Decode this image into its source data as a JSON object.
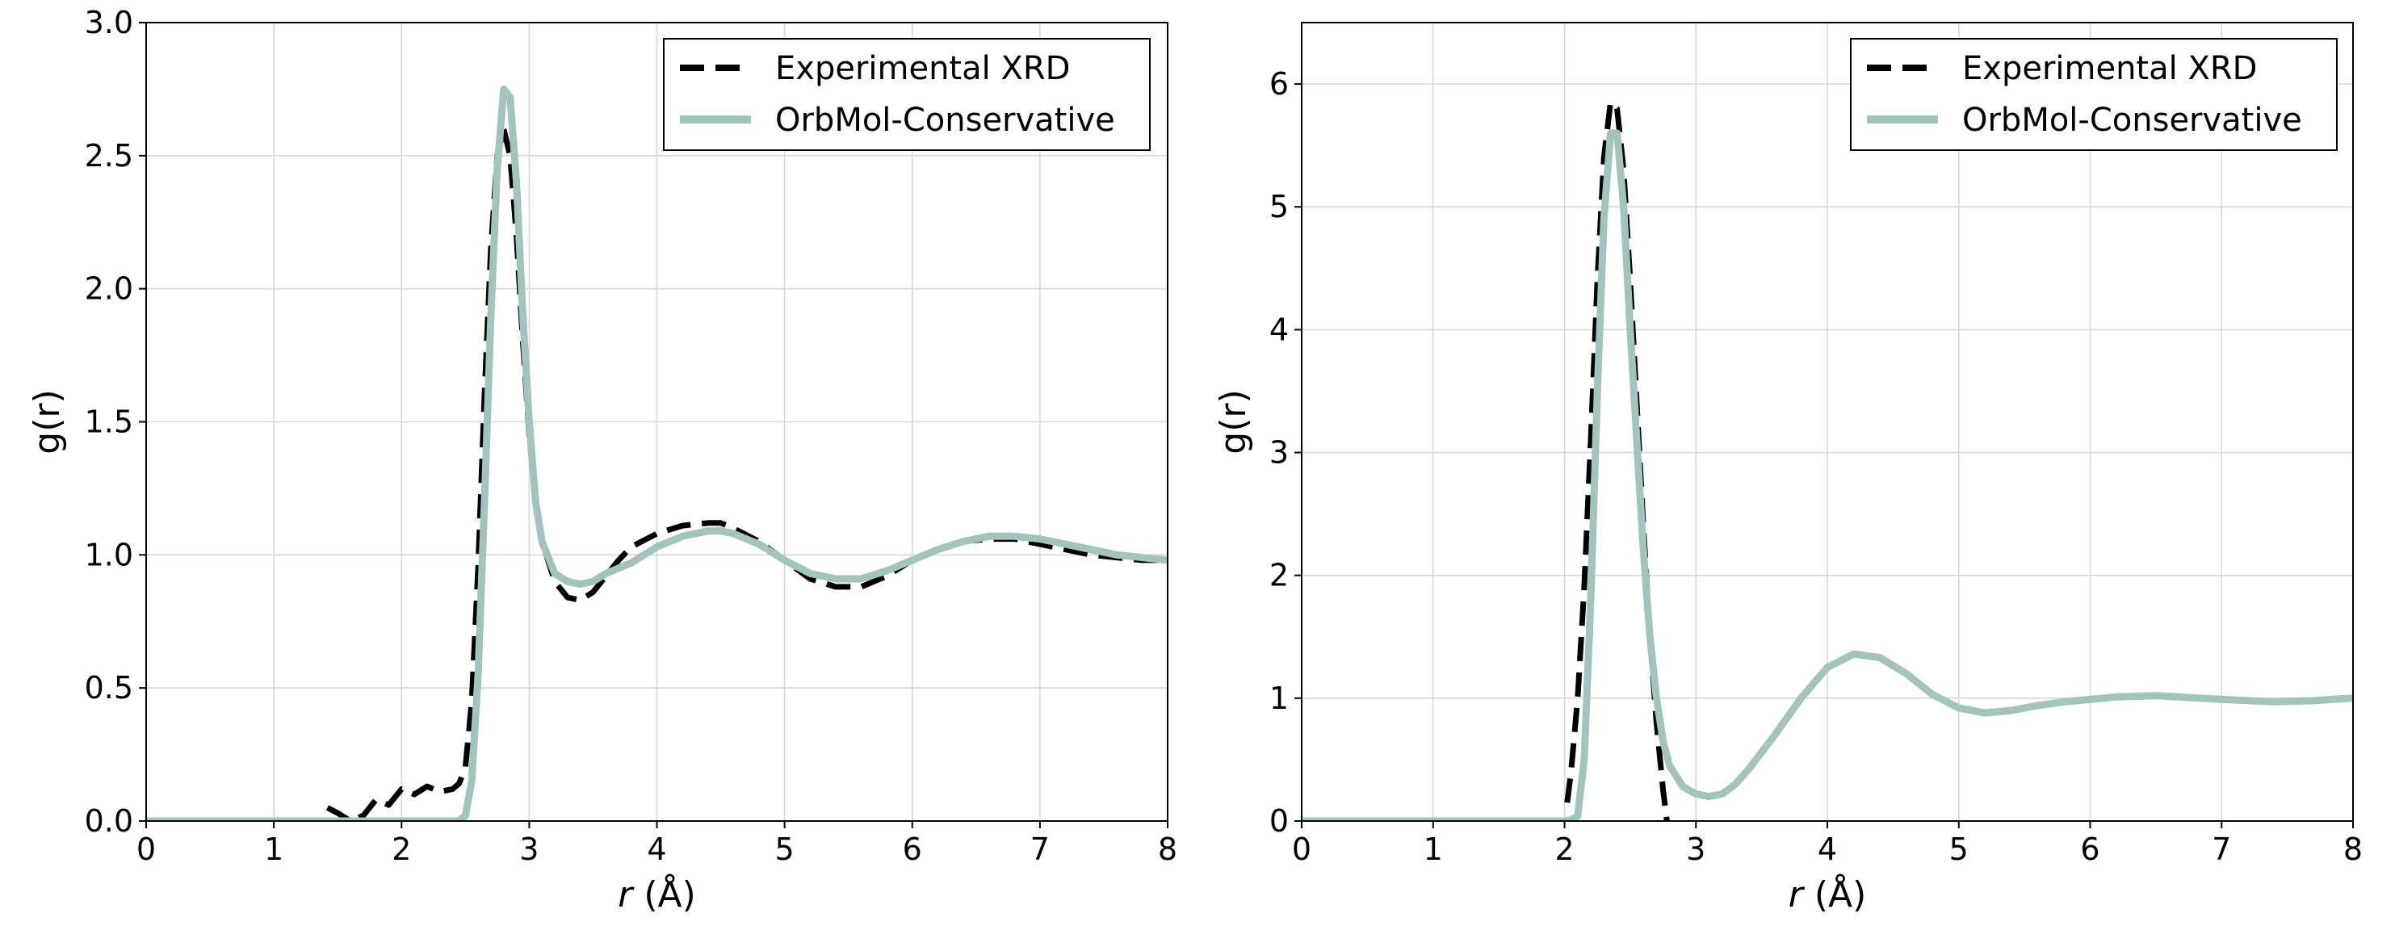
{
  "chart_data": [
    {
      "type": "line",
      "xlabel_italic": "r",
      "xlabel_unit": " (Å)",
      "ylabel": "g(r)",
      "xlim": [
        0,
        8
      ],
      "ylim": [
        0,
        3
      ],
      "xticks": [
        0,
        1,
        2,
        3,
        4,
        5,
        6,
        7,
        8
      ],
      "xtick_labels": [
        "0",
        "1",
        "2",
        "3",
        "4",
        "5",
        "6",
        "7",
        "8"
      ],
      "yticks": [
        0,
        0.5,
        1,
        1.5,
        2,
        2.5,
        3
      ],
      "ytick_labels": [
        "0.0",
        "0.5",
        "1.0",
        "1.5",
        "2.0",
        "2.5",
        "3.0"
      ],
      "grid": true,
      "legend_position": "top-right",
      "series": [
        {
          "name": "Experimental XRD",
          "style": "dashed",
          "color": "#000000",
          "x": [
            1.42,
            1.5,
            1.6,
            1.7,
            1.8,
            1.9,
            2.0,
            2.1,
            2.2,
            2.3,
            2.4,
            2.45,
            2.5,
            2.55,
            2.6,
            2.65,
            2.7,
            2.75,
            2.8,
            2.85,
            2.9,
            2.95,
            3.0,
            3.05,
            3.1,
            3.2,
            3.3,
            3.4,
            3.5,
            3.6,
            3.7,
            3.8,
            4.0,
            4.2,
            4.4,
            4.5,
            4.6,
            4.8,
            5.0,
            5.2,
            5.4,
            5.6,
            5.8,
            6.0,
            6.2,
            6.4,
            6.6,
            6.8,
            7.0,
            7.2,
            7.4,
            7.6,
            7.8,
            8.0
          ],
          "y": [
            0.05,
            0.03,
            0.0,
            0.02,
            0.08,
            0.06,
            0.12,
            0.1,
            0.13,
            0.11,
            0.12,
            0.14,
            0.2,
            0.45,
            0.95,
            1.6,
            2.15,
            2.5,
            2.6,
            2.5,
            2.2,
            1.8,
            1.45,
            1.2,
            1.05,
            0.9,
            0.84,
            0.83,
            0.86,
            0.92,
            0.98,
            1.03,
            1.08,
            1.11,
            1.12,
            1.12,
            1.1,
            1.05,
            0.98,
            0.91,
            0.88,
            0.88,
            0.92,
            0.98,
            1.02,
            1.05,
            1.06,
            1.06,
            1.04,
            1.02,
            1.0,
            0.99,
            0.98,
            0.98
          ]
        },
        {
          "name": "OrbMol-Conservative",
          "style": "solid",
          "color": "#a3c3bd",
          "x": [
            0,
            1.0,
            2.0,
            2.45,
            2.5,
            2.55,
            2.6,
            2.65,
            2.7,
            2.75,
            2.8,
            2.85,
            2.9,
            2.95,
            3.0,
            3.05,
            3.1,
            3.2,
            3.3,
            3.4,
            3.5,
            3.6,
            3.8,
            4.0,
            4.2,
            4.4,
            4.5,
            4.6,
            4.8,
            5.0,
            5.2,
            5.4,
            5.6,
            5.8,
            6.0,
            6.2,
            6.4,
            6.6,
            6.8,
            7.0,
            7.2,
            7.4,
            7.6,
            7.8,
            8.0
          ],
          "y": [
            0.0,
            0.0,
            0.0,
            0.0,
            0.02,
            0.15,
            0.55,
            1.2,
            1.9,
            2.45,
            2.75,
            2.72,
            2.4,
            1.9,
            1.5,
            1.2,
            1.05,
            0.93,
            0.9,
            0.89,
            0.9,
            0.93,
            0.97,
            1.03,
            1.07,
            1.09,
            1.09,
            1.08,
            1.04,
            0.98,
            0.93,
            0.91,
            0.91,
            0.94,
            0.98,
            1.02,
            1.05,
            1.07,
            1.07,
            1.06,
            1.04,
            1.02,
            1.0,
            0.99,
            0.98
          ]
        }
      ]
    },
    {
      "type": "line",
      "xlabel_italic": "r",
      "xlabel_unit": " (Å)",
      "ylabel": "g(r)",
      "xlim": [
        0,
        8
      ],
      "ylim": [
        0,
        6.5
      ],
      "xticks": [
        0,
        1,
        2,
        3,
        4,
        5,
        6,
        7,
        8
      ],
      "xtick_labels": [
        "0",
        "1",
        "2",
        "3",
        "4",
        "5",
        "6",
        "7",
        "8"
      ],
      "yticks": [
        0,
        1,
        2,
        3,
        4,
        5,
        6
      ],
      "ytick_labels": [
        "0",
        "1",
        "2",
        "3",
        "4",
        "5",
        "6"
      ],
      "grid": true,
      "legend_position": "top-right",
      "series": [
        {
          "name": "Experimental XRD",
          "style": "dashed",
          "color": "#000000",
          "x": [
            2.02,
            2.05,
            2.1,
            2.15,
            2.2,
            2.25,
            2.3,
            2.35,
            2.4,
            2.45,
            2.5,
            2.55,
            2.6,
            2.65,
            2.7,
            2.75,
            2.78
          ],
          "y": [
            0.15,
            0.4,
            1.0,
            1.9,
            3.1,
            4.4,
            5.4,
            5.85,
            5.8,
            5.3,
            4.4,
            3.4,
            2.4,
            1.5,
            0.8,
            0.25,
            0.0
          ]
        },
        {
          "name": "OrbMol-Conservative",
          "style": "solid",
          "color": "#a3c3bd",
          "x": [
            0,
            1.0,
            1.9,
            2.0,
            2.05,
            2.1,
            2.15,
            2.2,
            2.25,
            2.3,
            2.35,
            2.4,
            2.45,
            2.5,
            2.55,
            2.6,
            2.65,
            2.7,
            2.75,
            2.8,
            2.9,
            3.0,
            3.1,
            3.2,
            3.3,
            3.4,
            3.6,
            3.8,
            4.0,
            4.2,
            4.4,
            4.6,
            4.8,
            5.0,
            5.2,
            5.4,
            5.6,
            5.8,
            6.0,
            6.2,
            6.5,
            7.0,
            7.4,
            7.7,
            8.0
          ],
          "y": [
            0.0,
            0.0,
            0.0,
            0.0,
            0.01,
            0.04,
            0.5,
            1.8,
            3.5,
            4.9,
            5.6,
            5.6,
            5.0,
            4.0,
            3.1,
            2.2,
            1.5,
            1.0,
            0.65,
            0.45,
            0.28,
            0.22,
            0.2,
            0.22,
            0.3,
            0.42,
            0.7,
            1.0,
            1.25,
            1.36,
            1.33,
            1.2,
            1.03,
            0.92,
            0.88,
            0.9,
            0.94,
            0.97,
            0.99,
            1.01,
            1.02,
            0.99,
            0.97,
            0.98,
            1.0
          ]
        }
      ]
    }
  ]
}
